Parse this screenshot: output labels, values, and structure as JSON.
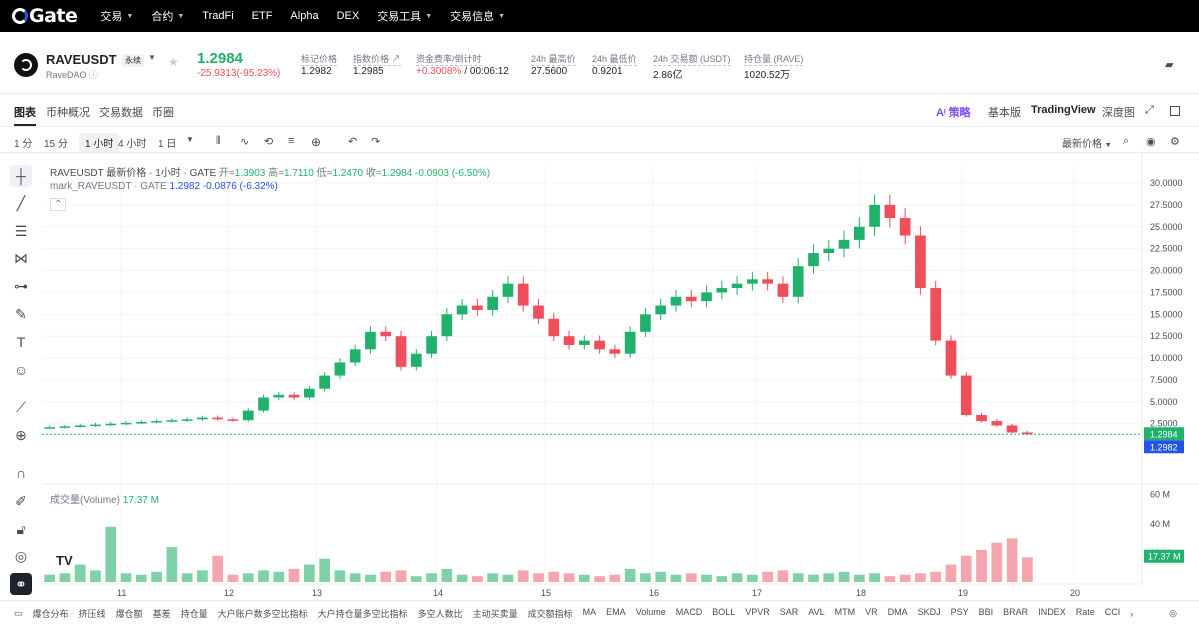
{
  "nav": {
    "logo": "Gate",
    "items": [
      {
        "label": "交易",
        "caret": true
      },
      {
        "label": "合约",
        "caret": true
      },
      {
        "label": "TradFi",
        "caret": false
      },
      {
        "label": "ETF",
        "caret": false
      },
      {
        "label": "Alpha",
        "caret": false
      },
      {
        "label": "DEX",
        "caret": false
      },
      {
        "label": "交易工具",
        "caret": true
      },
      {
        "label": "交易信息",
        "caret": true
      }
    ]
  },
  "ticker": {
    "symbol": "RAVEUSDT",
    "type": "永续",
    "name": "RaveDAO",
    "price": "1.2984",
    "change": "-25.9313(-95.23%)",
    "stats": [
      {
        "label": "标记价格",
        "value": "1.2982"
      },
      {
        "label": "指数价格 ↗",
        "value": "1.2985"
      },
      {
        "label": "资金费率/倒计时",
        "value": "+0.3008%",
        "value2": "/ 00:06:12"
      },
      {
        "label": "24h 最高价",
        "value": "27.5600"
      },
      {
        "label": "24h 最低价",
        "value": "0.9201"
      },
      {
        "label": "24h 交易额 (USDT)",
        "value": "2.86亿"
      },
      {
        "label": "持仓量 (RAVE)",
        "value": "1020.52万"
      }
    ]
  },
  "tabs": {
    "left": [
      "图表",
      "币种概况",
      "交易数据",
      "币圈"
    ],
    "right": [
      "策略",
      "基本版",
      "TradingView",
      "深度图"
    ]
  },
  "toolbar": {
    "intervals": [
      "1 分",
      "15 分",
      "1 小时",
      "4 小时",
      "1 日"
    ],
    "active": "1 小时",
    "price_mode": "最新价格"
  },
  "legend": {
    "main": "RAVEUSDT 最新价格 · 1小时 · GATE",
    "open_label": "开=",
    "open": "1.3903",
    "high_label": "高=",
    "high": "1.7110",
    "low_label": "低=",
    "low": "1.2470",
    "close_label": "收=",
    "close": "1.2984",
    "chg": "-0.0903 (-6.50%)",
    "mark": "mark_RAVEUSDT · GATE",
    "mark_val": "1.2982",
    "mark_chg": "-0.0876 (-6.32%)",
    "vol_label": "成交量(Volume)",
    "vol_val": "17.37 M"
  },
  "colors": {
    "up": "#20b26c",
    "down": "#ef4e5b",
    "blue": "#2354e6"
  },
  "chart_data": {
    "type": "candlestick",
    "y_ticks": [
      "30.0000",
      "27.5000",
      "25.0000",
      "22.5000",
      "20.0000",
      "17.5000",
      "15.0000",
      "12.5000",
      "10.0000",
      "7.5000",
      "5.0000",
      "2.5000"
    ],
    "ylim": [
      0,
      30
    ],
    "x_ticks": [
      "11",
      "12",
      "13",
      "14",
      "15",
      "16",
      "17",
      "18",
      "19",
      "20"
    ],
    "last_price": "1.2984",
    "mark_price": "1.2982",
    "vol_ticks": [
      "60 M",
      "40 M",
      "20 M"
    ],
    "vol_last": "17.37 M",
    "close_path": [
      2.1,
      2.2,
      2.3,
      2.4,
      2.5,
      2.6,
      2.7,
      2.8,
      2.9,
      3.0,
      3.2,
      3.0,
      2.9,
      4.0,
      5.5,
      5.8,
      5.5,
      6.5,
      8.0,
      9.5,
      11.0,
      13.0,
      12.5,
      9.0,
      10.5,
      12.5,
      15.0,
      16.0,
      15.5,
      17.0,
      18.5,
      16.0,
      14.5,
      12.5,
      11.5,
      12.0,
      11.0,
      10.5,
      13.0,
      15.0,
      16.0,
      17.0,
      16.5,
      17.5,
      18.0,
      18.5,
      19.0,
      18.5,
      17.0,
      20.5,
      22.0,
      22.5,
      23.5,
      25.0,
      27.5,
      26.0,
      24.0,
      18.0,
      12.0,
      8.0,
      3.5,
      2.8,
      2.3,
      1.5,
      1.3
    ],
    "volumes": [
      5,
      6,
      12,
      8,
      38,
      6,
      5,
      7,
      24,
      6,
      8,
      18,
      5,
      6,
      8,
      7,
      9,
      12,
      16,
      8,
      6,
      5,
      7,
      8,
      4,
      6,
      9,
      5,
      4,
      6,
      5,
      8,
      6,
      7,
      6,
      5,
      4,
      5,
      9,
      6,
      7,
      5,
      6,
      5,
      4,
      6,
      5,
      7,
      8,
      6,
      5,
      6,
      7,
      5,
      6,
      4,
      5,
      6,
      7,
      12,
      18,
      22,
      27,
      30,
      17
    ]
  },
  "bottom": [
    "爆仓分布",
    "挤压线",
    "爆仓额",
    "基差",
    "持仓量",
    "大户账户数多空比指标",
    "大户持仓量多空比指标",
    "多空人数比",
    "主动买卖量",
    "成交额指标",
    "MA",
    "EMA",
    "Volume",
    "MACD",
    "BOLL",
    "VPVR",
    "SAR",
    "AVL",
    "MTM",
    "VR",
    "DMA",
    "SKDJ",
    "PSY",
    "BBI",
    "BRAR",
    "INDEX",
    "Rate",
    "CCI"
  ]
}
